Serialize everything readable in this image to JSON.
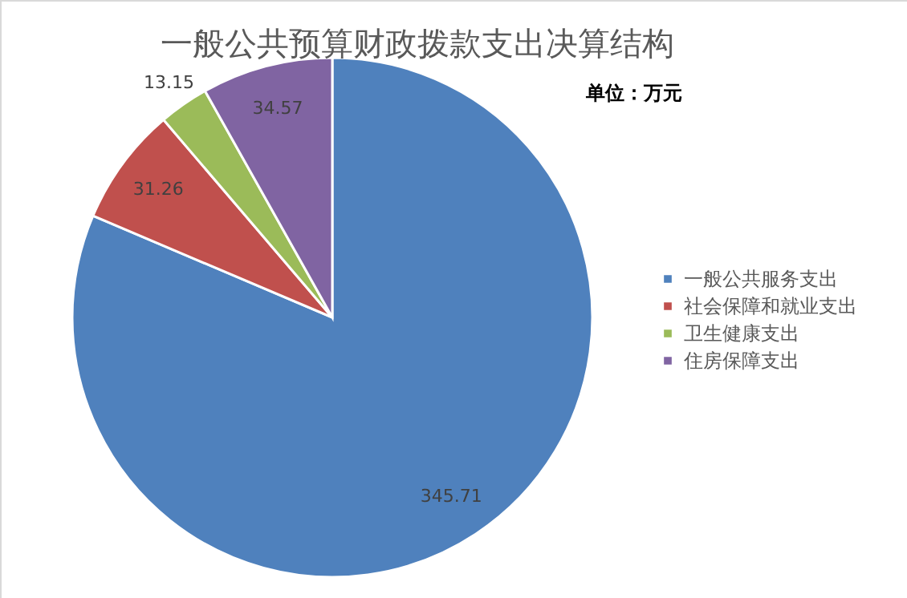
{
  "chart_data": {
    "type": "pie",
    "title": "一般公共预算财政拨款支出决算结构",
    "annotations": [
      "单位：万元"
    ],
    "categories": [
      "一般公共服务支出",
      "社会保障和就业支出",
      "卫生健康支出",
      "住房保障支出"
    ],
    "values": [
      345.71,
      31.26,
      13.15,
      34.57
    ],
    "colors": [
      "#4f81bd",
      "#c0504d",
      "#9bbb59",
      "#8064a2"
    ],
    "data_labels": true,
    "legend": "right"
  }
}
